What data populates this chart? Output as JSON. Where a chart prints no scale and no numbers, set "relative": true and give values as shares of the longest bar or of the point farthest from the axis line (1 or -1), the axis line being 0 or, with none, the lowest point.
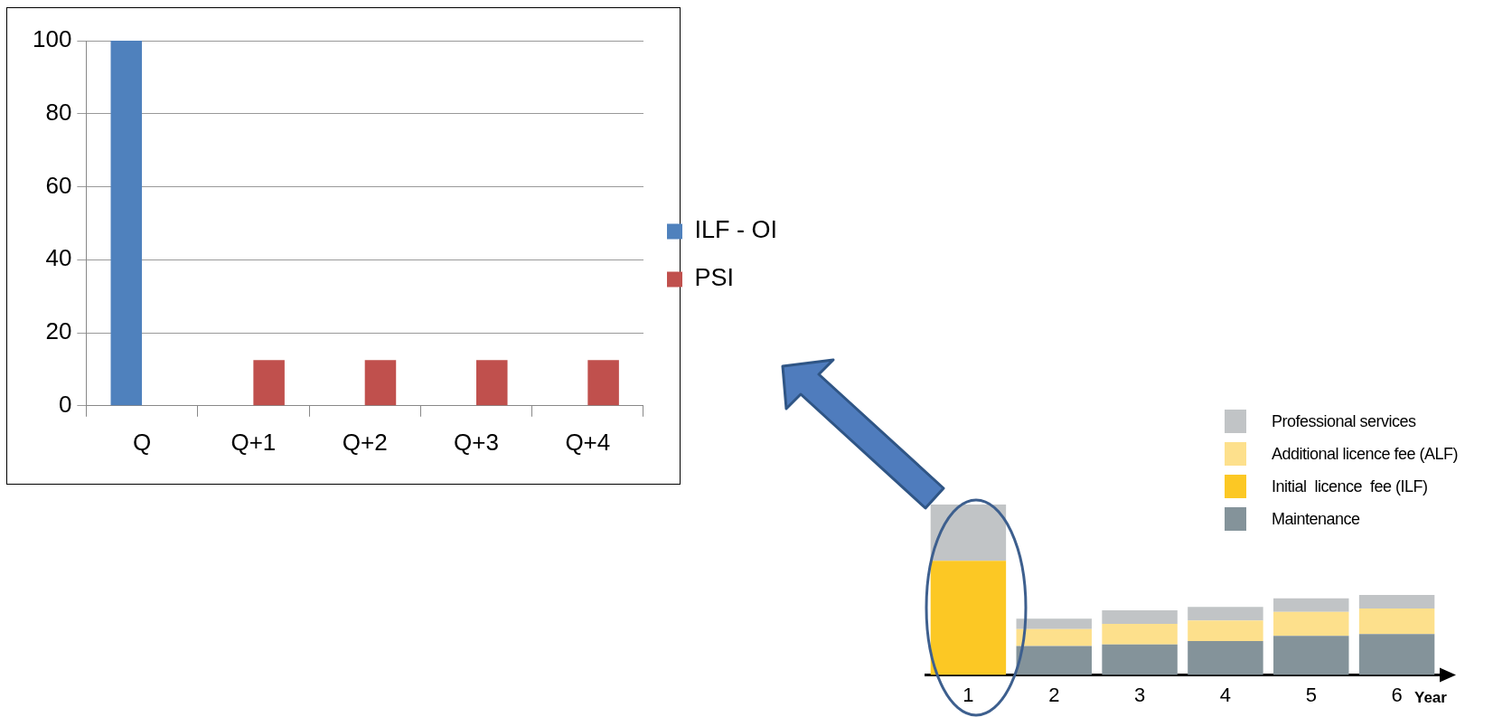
{
  "chart_data": [
    {
      "type": "bar",
      "categories": [
        "Q",
        "Q+1",
        "Q+2",
        "Q+3",
        "Q+4"
      ],
      "series": [
        {
          "name": "ILF - OI",
          "color": "#4f81bd",
          "values": [
            100,
            null,
            null,
            null,
            null
          ]
        },
        {
          "name": "PSI",
          "color": "#c0504d",
          "values": [
            null,
            12.5,
            12.5,
            12.5,
            12.5
          ]
        }
      ],
      "ylim": [
        0,
        100
      ],
      "yticks": [
        0,
        20,
        40,
        60,
        80,
        100
      ],
      "grid": "y",
      "legend": "right"
    },
    {
      "type": "bar",
      "stacked": true,
      "relative": true,
      "categories": [
        "1",
        "2",
        "3",
        "4",
        "5",
        "6"
      ],
      "xlabel": "Year",
      "series": [
        {
          "name": "Maintenance",
          "color": "#84939a",
          "values": [
            null,
            0.17,
            0.18,
            0.2,
            0.23,
            0.24
          ]
        },
        {
          "name": "Initial  licence  fee (ILF)",
          "color": "#fcc824",
          "values": [
            0.67,
            null,
            null,
            null,
            null,
            null
          ]
        },
        {
          "name": "Additional licence fee (ALF)",
          "color": "#fde08c",
          "values": [
            null,
            0.1,
            0.12,
            0.12,
            0.14,
            0.15
          ]
        },
        {
          "name": "Professional services",
          "color": "#c1c4c6",
          "values": [
            0.33,
            0.06,
            0.08,
            0.08,
            0.08,
            0.08
          ]
        }
      ],
      "legend": "right"
    }
  ]
}
